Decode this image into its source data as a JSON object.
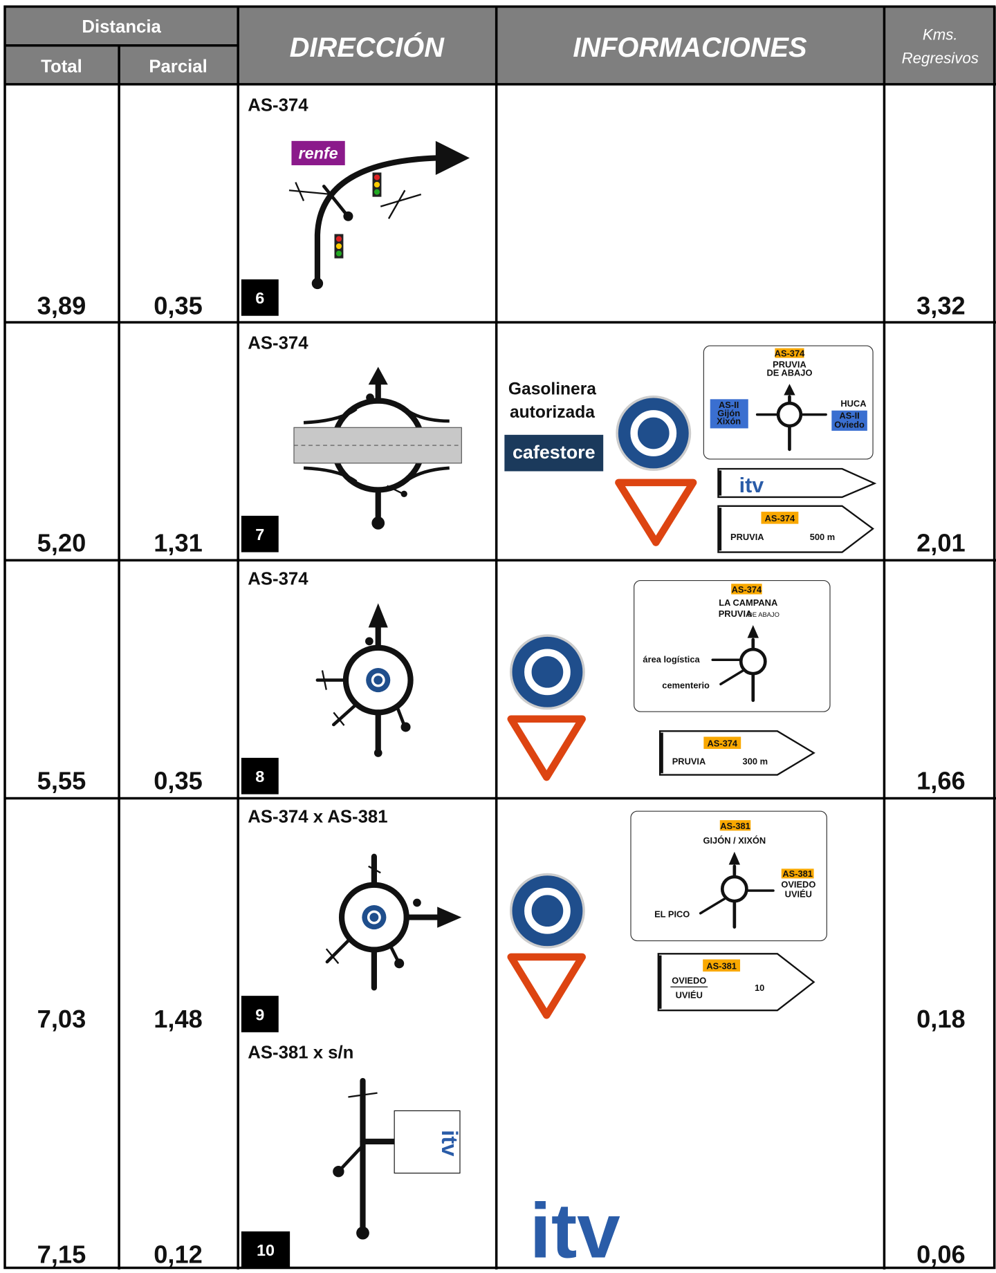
{
  "header": {
    "distancia": "Distancia",
    "total": "Total",
    "parcial": "Parcial",
    "direccion": "DIRECCIÓN",
    "informaciones": "INFORMACIONES",
    "kms": "Kms.",
    "regresivos": "Regresivos"
  },
  "rows": [
    {
      "total": "3,89",
      "parcial": "0,35",
      "kms": "3,32",
      "road": "AS-374",
      "step": "6",
      "logo": "renfe"
    },
    {
      "total": "5,20",
      "parcial": "1,31",
      "kms": "2,01",
      "road": "AS-374",
      "step": "7",
      "info": {
        "gas1": "Gasolinera",
        "gas2": "autorizada",
        "brand": "cafestore",
        "board": {
          "road": "AS-374",
          "dest1": "PRUVIA",
          "dest2": "DE ABAJO",
          "left1": "AS-II",
          "left2": "Gijón",
          "left3": "Xixón",
          "right0": "HUCA",
          "right1": "AS-II",
          "right2": "Oviedo"
        },
        "itv": "itv",
        "arrow": {
          "road": "AS-374",
          "dest": "PRUVIA",
          "dist": "500 m"
        }
      }
    },
    {
      "total": "5,55",
      "parcial": "0,35",
      "kms": "1,66",
      "road": "AS-374",
      "step": "8",
      "info": {
        "board": {
          "road": "AS-374",
          "dest1": "LA CAMPANA",
          "dest2": "PRUVIA",
          "dest3": "DE ABAJO",
          "left1": "área logística",
          "left2": "cementerio"
        },
        "arrow": {
          "road": "AS-374",
          "dest": "PRUVIA",
          "dist": "300 m"
        }
      }
    },
    {
      "total": "7,03",
      "parcial": "1,48",
      "kms": "0,18",
      "road": "AS-374 x AS-381",
      "step": "9",
      "info": {
        "board": {
          "road": "AS-381",
          "dest1": "GIJÓN / XIXÓN",
          "rroad": "AS-381",
          "right1": "OVIEDO",
          "right2": "UVIÉU",
          "left1": "EL PICO"
        },
        "arrow": {
          "road": "AS-381",
          "dest1": "OVIEDO",
          "dest2": "UVIÉU",
          "dist": "10"
        }
      }
    },
    {
      "total": "7,15",
      "parcial": "0,12",
      "kms": "0,06",
      "road": "AS-381 x s/n",
      "step": "10",
      "logo": "itv",
      "info": {
        "itv": "itv"
      }
    }
  ]
}
